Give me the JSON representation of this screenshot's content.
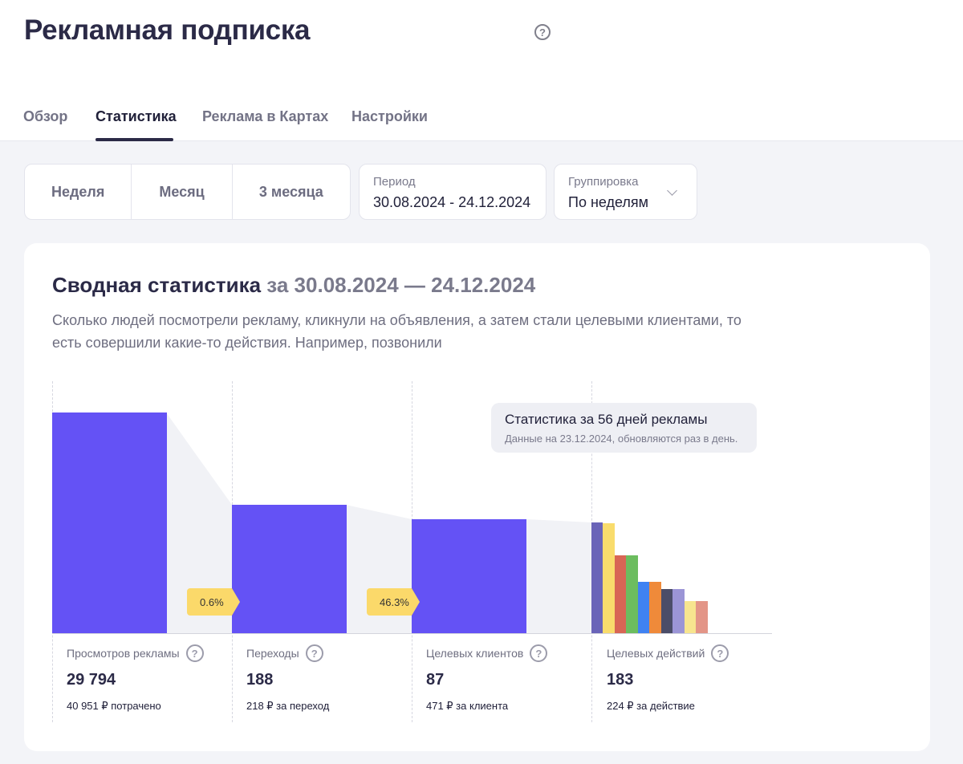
{
  "header": {
    "title": "Рекламная подписка",
    "help_glyph": "?"
  },
  "tabs": [
    {
      "label": "Обзор",
      "active": false
    },
    {
      "label": "Статистика",
      "active": true
    },
    {
      "label": "Реклама в Картах",
      "active": false
    },
    {
      "label": "Настройки",
      "active": false
    }
  ],
  "filters": {
    "presets": [
      "Неделя",
      "Месяц",
      "3 месяца"
    ],
    "period": {
      "label": "Период",
      "value": "30.08.2024 - 24.12.2024"
    },
    "grouping": {
      "label": "Группировка",
      "value": "По неделям"
    }
  },
  "summary": {
    "title": "Сводная статистика",
    "title_period": "за 30.08.2024 — 24.12.2024",
    "description": "Сколько людей посмотрели рекламу, кликнули на объявления, а затем стали целевыми клиентами, то есть совершили какие-то действия. Например, позвонили",
    "tooltip": {
      "title": "Статистика за 56 дней рекламы",
      "subtitle": "Данные на 23.12.2024, обновляются раз в день."
    },
    "rates": [
      "0.6%",
      "46.3%"
    ],
    "metrics": [
      {
        "label": "Просмотров рекламы",
        "value": "29 794",
        "sub": "40 951 ₽ потрачено"
      },
      {
        "label": "Переходы",
        "value": "188",
        "sub": "218 ₽ за переход"
      },
      {
        "label": "Целевых клиентов",
        "value": "87",
        "sub": "471 ₽ за клиента"
      },
      {
        "label": "Целевых действий",
        "value": "183",
        "sub": "224 ₽ за действие"
      }
    ],
    "action_colors": [
      "#6a64b8",
      "#f9dc6c",
      "#d86655",
      "#6cbd5f",
      "#3f82f2",
      "#ef8a3a",
      "#4b4d68",
      "#9b95d6",
      "#f7e58f",
      "#e39587"
    ],
    "colors": {
      "bar": "#6452f5",
      "badge": "#fbd96a"
    }
  }
}
